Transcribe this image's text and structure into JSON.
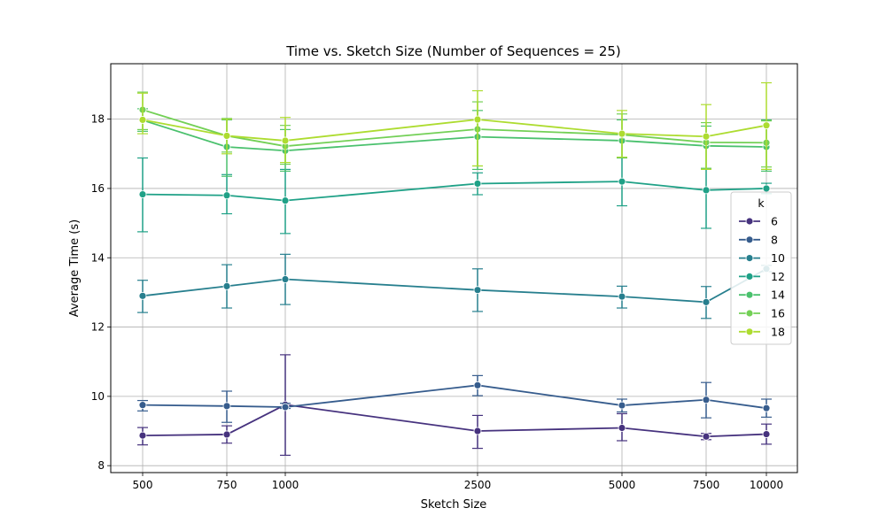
{
  "chart_data": {
    "type": "line",
    "title": "Time vs. Sketch Size (Number of Sequences = 25)",
    "xlabel": "Sketch Size",
    "ylabel": "Average Time (s)",
    "x": [
      500,
      750,
      1000,
      2500,
      5000,
      7500,
      10000
    ],
    "x_tick_labels": [
      "500",
      "750",
      "1000",
      "2500",
      "5000",
      "7500",
      "10000"
    ],
    "y_ticks": [
      8,
      10,
      12,
      14,
      16,
      18
    ],
    "y_tick_labels": [
      "8",
      "10",
      "12",
      "14",
      "16",
      "18"
    ],
    "ylim": [
      7.8,
      19.6
    ],
    "grid": true,
    "legend_title": "k",
    "legend_placement": "right",
    "series": [
      {
        "name": "6",
        "color": "#46327e",
        "values": [
          8.87,
          8.9,
          9.76,
          9.0,
          9.09,
          8.84,
          8.91
        ],
        "err_low": [
          8.6,
          8.65,
          8.3,
          8.5,
          8.72,
          8.75,
          8.62
        ],
        "err_high": [
          9.1,
          9.15,
          11.2,
          9.45,
          9.5,
          8.93,
          9.2
        ]
      },
      {
        "name": "8",
        "color": "#365c8d",
        "values": [
          9.75,
          9.72,
          9.69,
          10.32,
          9.74,
          9.9,
          9.66
        ],
        "err_low": [
          9.58,
          9.25,
          9.65,
          10.02,
          9.55,
          9.38,
          9.4
        ],
        "err_high": [
          9.88,
          10.15,
          9.8,
          10.6,
          9.92,
          10.4,
          9.92
        ]
      },
      {
        "name": "10",
        "color": "#277f8e",
        "values": [
          12.9,
          13.18,
          13.38,
          13.07,
          12.88,
          12.72,
          13.68
        ],
        "err_low": [
          12.42,
          12.55,
          12.65,
          12.45,
          12.55,
          12.25,
          13.6
        ],
        "err_high": [
          13.35,
          13.8,
          14.1,
          13.68,
          13.18,
          13.17,
          13.78
        ]
      },
      {
        "name": "12",
        "color": "#1fa187",
        "values": [
          15.83,
          15.8,
          15.65,
          16.14,
          16.2,
          15.95,
          16.0
        ],
        "err_low": [
          14.75,
          15.27,
          14.7,
          15.82,
          15.5,
          14.85,
          15.85
        ],
        "err_high": [
          16.88,
          16.4,
          16.55,
          16.45,
          16.9,
          16.58,
          16.15
        ]
      },
      {
        "name": "14",
        "color": "#4ac16d",
        "values": [
          17.97,
          17.2,
          17.09,
          17.49,
          17.38,
          17.23,
          17.2
        ],
        "err_low": [
          17.65,
          16.35,
          16.5,
          16.55,
          16.88,
          16.55,
          16.5
        ],
        "err_high": [
          18.3,
          17.98,
          17.7,
          18.25,
          17.98,
          17.8,
          17.98
        ]
      },
      {
        "name": "16",
        "color": "#73d056",
        "values": [
          18.27,
          17.52,
          17.22,
          17.71,
          17.55,
          17.33,
          17.32
        ],
        "err_low": [
          17.7,
          17.05,
          16.7,
          16.65,
          16.9,
          16.58,
          16.62
        ],
        "err_high": [
          18.78,
          18.02,
          17.82,
          18.5,
          18.15,
          17.9,
          17.95
        ]
      },
      {
        "name": "18",
        "color": "#addc30",
        "values": [
          17.98,
          17.52,
          17.38,
          17.99,
          17.58,
          17.5,
          17.82
        ],
        "err_low": [
          17.58,
          17.0,
          16.75,
          16.65,
          16.9,
          16.55,
          16.55
        ],
        "err_high": [
          18.75,
          18.0,
          18.05,
          18.82,
          18.25,
          18.42,
          19.05
        ]
      }
    ]
  }
}
